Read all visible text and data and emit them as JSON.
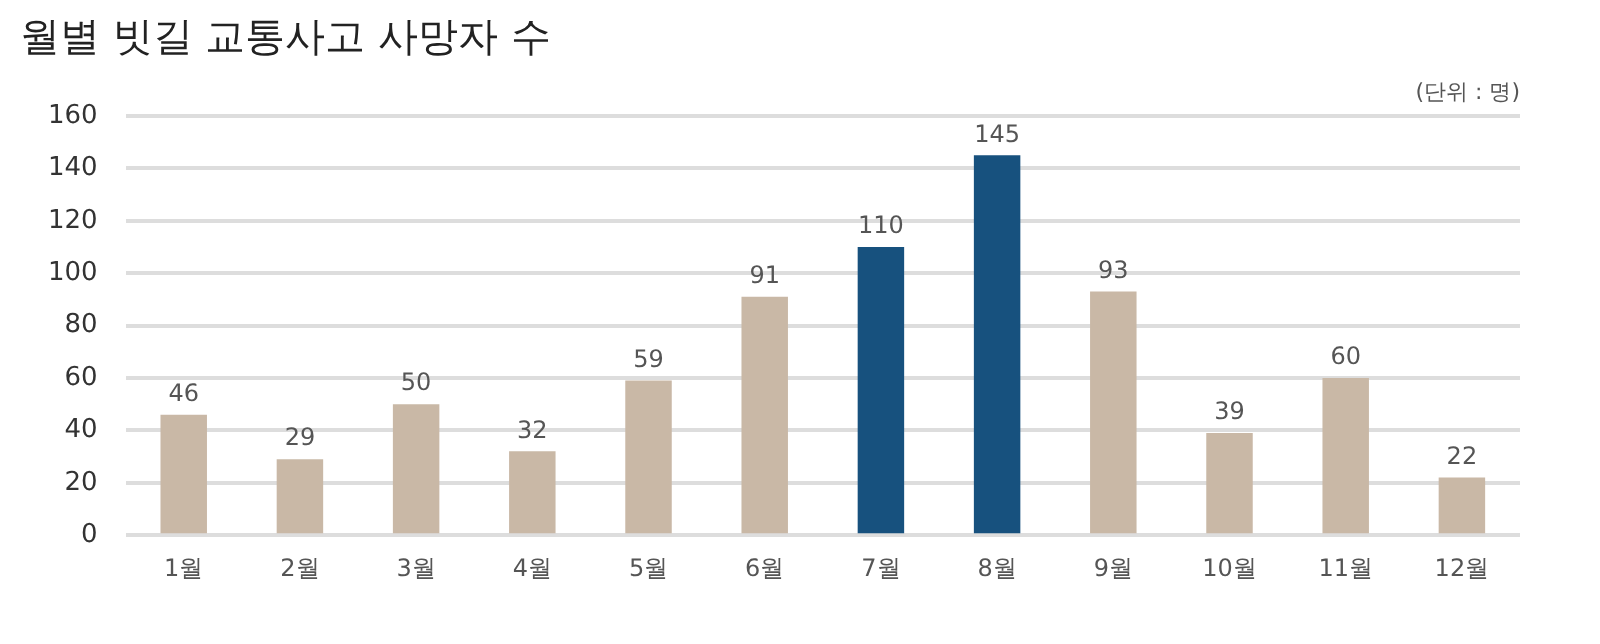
{
  "chart_data": {
    "type": "bar",
    "title": "월별 빗길 교통사고 사망자 수",
    "annotations": [
      "(단위 : 명)"
    ],
    "categories": [
      "1월",
      "2월",
      "3월",
      "4월",
      "5월",
      "6월",
      "7월",
      "8월",
      "9월",
      "10월",
      "11월",
      "12월"
    ],
    "values": [
      46,
      29,
      50,
      32,
      59,
      91,
      110,
      145,
      93,
      39,
      60,
      22
    ],
    "colors": [
      "#c9b8a6",
      "#c9b8a6",
      "#c9b8a6",
      "#c9b8a6",
      "#c9b8a6",
      "#c9b8a6",
      "#17517e",
      "#17517e",
      "#c9b8a6",
      "#c9b8a6",
      "#c9b8a6",
      "#c9b8a6"
    ],
    "ylim": [
      0,
      160
    ],
    "yticks": [
      0,
      20,
      40,
      60,
      80,
      100,
      120,
      140,
      160
    ],
    "grid": "y",
    "data_labels": true,
    "legend": false
  }
}
